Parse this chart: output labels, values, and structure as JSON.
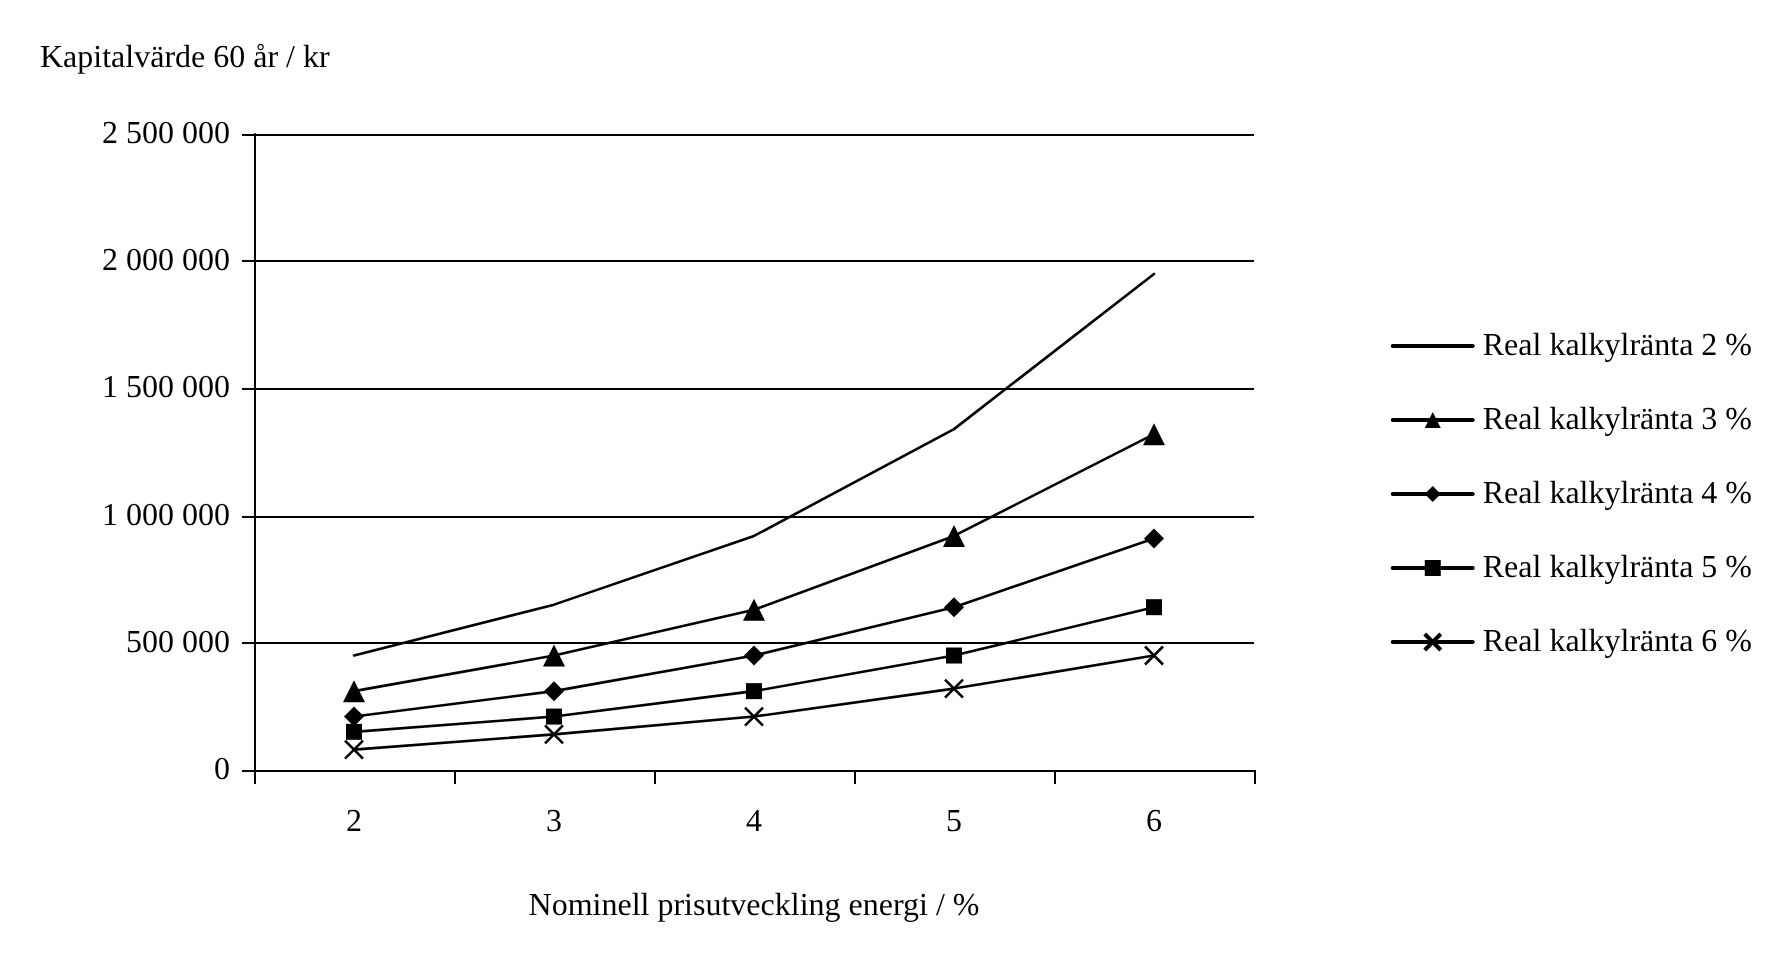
{
  "chart_data": {
    "type": "line",
    "ylabel": "Kapitalvärde 60 år / kr",
    "xlabel": "Nominell prisutveckling energi / %",
    "categories": [
      "2",
      "3",
      "4",
      "5",
      "6"
    ],
    "series": [
      {
        "name": "Real kalkylränta 2 %",
        "color": "#000000",
        "marker": "none",
        "values": [
          450000,
          650000,
          920000,
          1340000,
          1950000
        ]
      },
      {
        "name": "Real kalkylränta 3 %",
        "color": "#000000",
        "marker": "triangle",
        "values": [
          310000,
          450000,
          630000,
          920000,
          1320000
        ]
      },
      {
        "name": "Real kalkylränta 4 %",
        "color": "#000000",
        "marker": "diamond",
        "values": [
          210000,
          310000,
          450000,
          640000,
          910000
        ]
      },
      {
        "name": "Real kalkylränta 5 %",
        "color": "#000000",
        "marker": "square",
        "values": [
          150000,
          210000,
          310000,
          450000,
          640000
        ]
      },
      {
        "name": "Real kalkylränta 6 %",
        "color": "#000000",
        "marker": "cross",
        "values": [
          80000,
          140000,
          210000,
          320000,
          450000
        ]
      }
    ],
    "ylim": [
      0,
      2500000
    ],
    "yticks": [
      {
        "value": 0,
        "label": "0"
      },
      {
        "value": 500000,
        "label": "500 000"
      },
      {
        "value": 1000000,
        "label": "1 000 000"
      },
      {
        "value": 1500000,
        "label": "1 500 000"
      },
      {
        "value": 2000000,
        "label": "2 000 000"
      },
      {
        "value": 2500000,
        "label": "2 500 000"
      }
    ],
    "grid": "y",
    "legend": "right",
    "line_style": "solid"
  }
}
